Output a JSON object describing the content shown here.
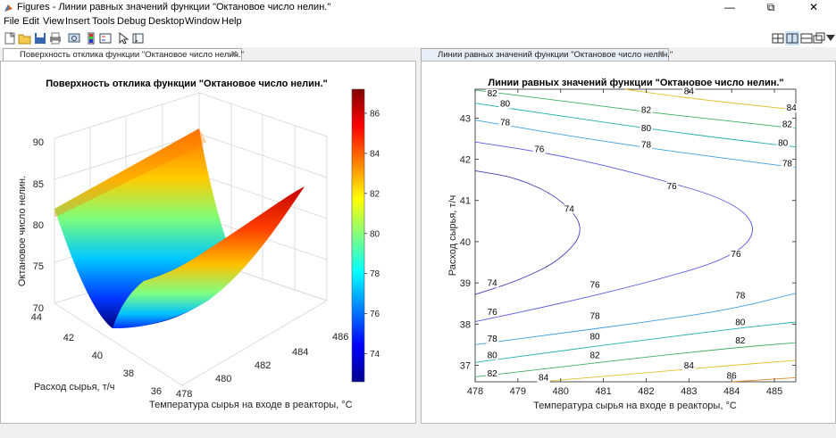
{
  "window": {
    "title": "Figures - Линии равных значений функции \"Октановое число нелин.\"",
    "minimize_icon": "minimize-icon",
    "maximize_icon": "restore-icon",
    "close_icon": "close-icon"
  },
  "menu": [
    "File",
    "Edit",
    "View",
    "Insert",
    "Tools",
    "Debug",
    "Desktop",
    "Window",
    "Help"
  ],
  "toolbar": {
    "icons": [
      "new-figure-icon",
      "open-file-icon",
      "save-icon",
      "print-icon",
      "link-icon",
      "insert-colorbar-icon",
      "insert-legend-icon",
      "pointer-icon",
      "edit-plot-icon"
    ],
    "layout_icons": [
      "tile-layout-icon",
      "left-right-layout-icon",
      "top-bottom-layout-icon",
      "float-layout-icon",
      "dock-icon"
    ]
  },
  "tabs": {
    "left": "Поверхность отклика функции \"Октановое число нелин.\"",
    "right": "Линии равных значений функции \"Октановое число нелин.\""
  },
  "chart_data": [
    {
      "type": "surface",
      "title": "Поверхность отклика функции \"Октановое число нелин.\"",
      "xlabel": "Температура сырья на входе в реакторы, °C",
      "ylabel": "Расход сырья, т/ч",
      "zlabel": "Октановое число нелин.",
      "x_ticks": [
        478,
        480,
        482,
        484,
        486
      ],
      "y_ticks": [
        36,
        38,
        40,
        42,
        44
      ],
      "z_ticks": [
        70,
        75,
        80,
        85,
        90
      ],
      "colorbar_ticks": [
        74,
        76,
        78,
        80,
        82,
        84,
        86
      ],
      "colormap": "jet",
      "xlim": [
        478,
        486
      ],
      "ylim": [
        36,
        44
      ],
      "zlim": [
        70,
        90
      ],
      "corner_values": {
        "x478_y36": 84,
        "x478_y44": 81,
        "x486_y44": 87,
        "x486_y36": 84,
        "min_valley": 72
      }
    },
    {
      "type": "contour",
      "title": "Линии равных значений функции \"Октановое число нелин.\"",
      "xlabel": "Температура сырья на входе в реакторы, °C",
      "ylabel": "Расход сырья, т/ч",
      "x_ticks": [
        478,
        479,
        480,
        481,
        482,
        483,
        484,
        485
      ],
      "y_ticks": [
        37,
        38,
        39,
        40,
        41,
        42,
        43
      ],
      "xlim": [
        478,
        485.5
      ],
      "ylim": [
        36.6,
        43.7
      ],
      "levels": [
        74,
        76,
        78,
        80,
        82,
        84,
        86
      ],
      "level_colors": {
        "74": "#3f3fb8",
        "76": "#5a5ae0",
        "78": "#3fa0e0",
        "80": "#22b0b0",
        "82": "#40b060",
        "84": "#e0c030",
        "86": "#e08a2a"
      },
      "contours": [
        {
          "level": 74,
          "points": [
            [
              478,
              38.72
            ],
            [
              479,
              39.05
            ],
            [
              480,
              39.55
            ],
            [
              480.6,
              40.3
            ],
            [
              480,
              41.05
            ],
            [
              479,
              41.55
            ],
            [
              478,
              41.72
            ]
          ]
        },
        {
          "level": 76,
          "points": [
            [
              478,
              38.06
            ],
            [
              480,
              38.5
            ],
            [
              482,
              39.0
            ],
            [
              484,
              39.6
            ],
            [
              484.65,
              40.3
            ],
            [
              484,
              41.0
            ],
            [
              482,
              41.6
            ],
            [
              480,
              42.1
            ],
            [
              478,
              42.42
            ]
          ]
        },
        {
          "level": 78,
          "points": [
            [
              478,
              37.5
            ],
            [
              480,
              37.78
            ],
            [
              482,
              38.05
            ],
            [
              484,
              38.36
            ],
            [
              485.5,
              38.75
            ]
          ]
        },
        {
          "level": 78,
          "points": [
            [
              478,
              42.95
            ],
            [
              480,
              42.6
            ],
            [
              482,
              42.28
            ],
            [
              484,
              42.0
            ],
            [
              485.5,
              41.8
            ]
          ]
        },
        {
          "level": 80,
          "points": [
            [
              478,
              37.07
            ],
            [
              480,
              37.35
            ],
            [
              482,
              37.62
            ],
            [
              484,
              37.88
            ],
            [
              485.5,
              38.05
            ]
          ]
        },
        {
          "level": 80,
          "points": [
            [
              478,
              43.36
            ],
            [
              480,
              43.05
            ],
            [
              482,
              42.75
            ],
            [
              484,
              42.48
            ],
            [
              485.5,
              42.3
            ]
          ]
        },
        {
          "level": 82,
          "points": [
            [
              478,
              36.72
            ],
            [
              480,
              36.96
            ],
            [
              482,
              37.2
            ],
            [
              484,
              37.42
            ],
            [
              485.5,
              37.55
            ]
          ]
        },
        {
          "level": 82,
          "points": [
            [
              478,
              43.68
            ],
            [
              480,
              43.42
            ],
            [
              482,
              43.15
            ],
            [
              484,
              42.92
            ],
            [
              485.5,
              42.75
            ]
          ]
        },
        {
          "level": 84,
          "points": [
            [
              479.5,
              36.6
            ],
            [
              482,
              36.82
            ],
            [
              484,
              37.0
            ],
            [
              485.5,
              37.12
            ]
          ]
        },
        {
          "level": 84,
          "points": [
            [
              481.5,
              43.7
            ],
            [
              483,
              43.48
            ],
            [
              485.5,
              43.2
            ]
          ]
        },
        {
          "level": 86,
          "points": [
            [
              484,
              36.6
            ],
            [
              485.5,
              36.7
            ]
          ]
        }
      ],
      "labels": [
        {
          "text": "82",
          "x": 478.4,
          "y": 43.55
        },
        {
          "text": "84",
          "x": 483.0,
          "y": 43.6
        },
        {
          "text": "84",
          "x": 485.4,
          "y": 43.2
        },
        {
          "text": "80",
          "x": 478.7,
          "y": 43.3
        },
        {
          "text": "82",
          "x": 482.0,
          "y": 43.15
        },
        {
          "text": "82",
          "x": 485.3,
          "y": 42.8
        },
        {
          "text": "78",
          "x": 478.7,
          "y": 42.85
        },
        {
          "text": "80",
          "x": 482.0,
          "y": 42.7
        },
        {
          "text": "80",
          "x": 485.2,
          "y": 42.35
        },
        {
          "text": "78",
          "x": 482.0,
          "y": 42.3
        },
        {
          "text": "78",
          "x": 485.3,
          "y": 41.85
        },
        {
          "text": "76",
          "x": 479.5,
          "y": 42.2
        },
        {
          "text": "76",
          "x": 482.6,
          "y": 41.3
        },
        {
          "text": "74",
          "x": 480.2,
          "y": 40.75
        },
        {
          "text": "76",
          "x": 484.1,
          "y": 39.65
        },
        {
          "text": "74",
          "x": 478.4,
          "y": 38.95
        },
        {
          "text": "76",
          "x": 480.8,
          "y": 38.9
        },
        {
          "text": "76",
          "x": 478.4,
          "y": 38.25
        },
        {
          "text": "78",
          "x": 480.8,
          "y": 38.15
        },
        {
          "text": "78",
          "x": 484.2,
          "y": 38.65
        },
        {
          "text": "78",
          "x": 478.4,
          "y": 37.6
        },
        {
          "text": "80",
          "x": 480.8,
          "y": 37.65
        },
        {
          "text": "80",
          "x": 484.2,
          "y": 38.0
        },
        {
          "text": "80",
          "x": 478.4,
          "y": 37.2
        },
        {
          "text": "82",
          "x": 480.8,
          "y": 37.2
        },
        {
          "text": "82",
          "x": 484.2,
          "y": 37.55
        },
        {
          "text": "82",
          "x": 478.4,
          "y": 36.75
        },
        {
          "text": "84",
          "x": 479.6,
          "y": 36.65
        },
        {
          "text": "84",
          "x": 483.0,
          "y": 36.95
        },
        {
          "text": "86",
          "x": 484.0,
          "y": 36.7
        }
      ]
    }
  ]
}
